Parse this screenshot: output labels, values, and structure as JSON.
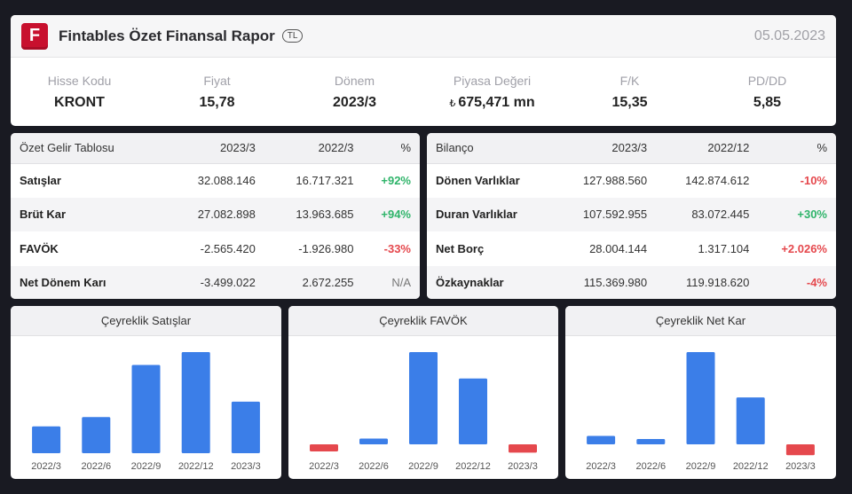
{
  "header": {
    "logo_letter": "F",
    "title": "Fintables Özet Finansal Rapor",
    "currency_badge": "TL",
    "date": "05.05.2023"
  },
  "stats": [
    {
      "label": "Hisse Kodu",
      "value": "KRONT"
    },
    {
      "label": "Fiyat",
      "value": "15,78"
    },
    {
      "label": "Dönem",
      "value": "2023/3"
    },
    {
      "label": "Piyasa Değeri",
      "currency_symbol": "₺",
      "value": "675,471 mn"
    },
    {
      "label": "F/K",
      "value": "15,35"
    },
    {
      "label": "PD/DD",
      "value": "5,85"
    }
  ],
  "income": {
    "headers": [
      "Özet Gelir Tablosu",
      "2023/3",
      "2022/3",
      "%"
    ],
    "rows": [
      {
        "name": "Satışlar",
        "cur": "32.088.146",
        "prev": "16.717.321",
        "pct": "+92%",
        "tone": "pos"
      },
      {
        "name": "Brüt Kar",
        "cur": "27.082.898",
        "prev": "13.963.685",
        "pct": "+94%",
        "tone": "pos"
      },
      {
        "name": "FAVÖK",
        "cur": "-2.565.420",
        "prev": "-1.926.980",
        "pct": "-33%",
        "tone": "neg"
      },
      {
        "name": "Net Dönem Karı",
        "cur": "-3.499.022",
        "prev": "2.672.255",
        "pct": "N/A",
        "tone": "na"
      }
    ]
  },
  "balance": {
    "headers": [
      "Bilanço",
      "2023/3",
      "2022/12",
      "%"
    ],
    "rows": [
      {
        "name": "Dönen Varlıklar",
        "cur": "127.988.560",
        "prev": "142.874.612",
        "pct": "-10%",
        "tone": "neg"
      },
      {
        "name": "Duran Varlıklar",
        "cur": "107.592.955",
        "prev": "83.072.445",
        "pct": "+30%",
        "tone": "pos"
      },
      {
        "name": "Net Borç",
        "cur": "28.004.144",
        "prev": "1.317.104",
        "pct": "+2.026%",
        "tone": "neg"
      },
      {
        "name": "Özkaynaklar",
        "cur": "115.369.980",
        "prev": "119.918.620",
        "pct": "-4%",
        "tone": "neg"
      }
    ]
  },
  "colors": {
    "positive_bar": "#3b7ee8",
    "negative_bar": "#e5484d",
    "positive_text": "#2fb46a",
    "negative_text": "#e5484d",
    "logo": "#c8102e"
  },
  "chart_data": [
    {
      "type": "bar",
      "title": "Çeyreklik Satışlar",
      "categories": [
        "2022/3",
        "2022/6",
        "2022/9",
        "2022/12",
        "2023/3"
      ],
      "values": [
        16.7,
        22.5,
        55.0,
        63.0,
        32.1
      ]
    },
    {
      "type": "bar",
      "title": "Çeyreklik FAVÖK",
      "categories": [
        "2022/3",
        "2022/6",
        "2022/9",
        "2022/12",
        "2023/3"
      ],
      "values": [
        -1.9,
        1.8,
        28.7,
        20.5,
        -2.6
      ]
    },
    {
      "type": "bar",
      "title": "Çeyreklik Net Kar",
      "categories": [
        "2022/3",
        "2022/6",
        "2022/9",
        "2022/12",
        "2023/3"
      ],
      "values": [
        2.7,
        0.8,
        29.5,
        15.0,
        -3.5
      ]
    }
  ]
}
